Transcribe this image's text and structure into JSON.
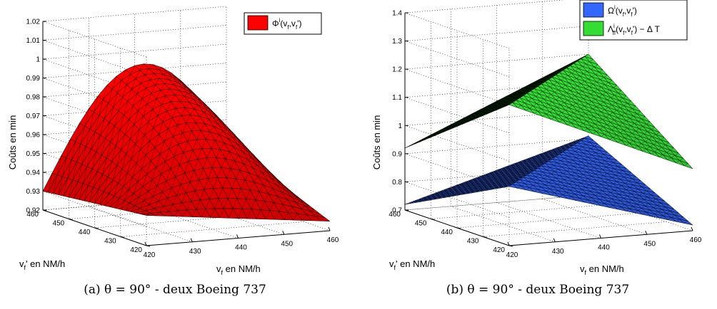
{
  "chart_data": [
    {
      "type": "surface",
      "caption": "(a) θ = 90° - deux Boeing 737",
      "zlabel": "Coûts en min",
      "xlabel_main": "v",
      "xlabel_sub": "f",
      "xlabel_rest": " en NM/h",
      "ylabel_main": "v",
      "ylabel_sub": "f",
      "ylabel_rest": "' en NM/h",
      "x_ticks": [
        "420",
        "430",
        "440",
        "450",
        "460"
      ],
      "y_ticks": [
        "420",
        "430",
        "440",
        "450",
        "460"
      ],
      "z_ticks": [
        "0.92",
        "0.93",
        "0.94",
        "0.95",
        "0.96",
        "0.97",
        "0.98",
        "0.99",
        "1",
        "1.01",
        "1.02"
      ],
      "xlim": [
        420,
        460
      ],
      "ylim": [
        420,
        460
      ],
      "zlim": [
        0.92,
        1.02
      ],
      "corners": {
        "x420_y420": 0.936,
        "x460_y420": 0.925,
        "x420_y460": 0.93,
        "x460_y460": 0.94,
        "peak": 0.99
      },
      "series": [
        {
          "name": "Φi(vf,vf')",
          "legend_main": "Φ",
          "legend_sup": "i",
          "legend_args": "(v",
          "legend_sub1": "f",
          "legend_mid": ",v",
          "legend_sub2": "f",
          "legend_end": "')",
          "color": "#ff0000"
        }
      ]
    },
    {
      "type": "surface",
      "caption": "(b) θ = 90° - deux Boeing 737",
      "zlabel": "Coûts en min",
      "xlabel_main": "v",
      "xlabel_sub": "f",
      "xlabel_rest": " en NM/h",
      "ylabel_main": "v",
      "ylabel_sub": "f",
      "ylabel_rest": "' en NM/h",
      "x_ticks": [
        "420",
        "430",
        "440",
        "450",
        "460"
      ],
      "y_ticks": [
        "420",
        "430",
        "440",
        "450",
        "460"
      ],
      "z_ticks": [
        "0.7",
        "0.8",
        "0.9",
        "1",
        "1.1",
        "1.2",
        "1.3",
        "1.4"
      ],
      "xlim": [
        420,
        460
      ],
      "ylim": [
        420,
        460
      ],
      "zlim": [
        0.7,
        1.4
      ],
      "series": [
        {
          "name": "Ωi(vf,vf')",
          "legend_main": "Ω",
          "legend_sup": "i",
          "legend_args": "(v",
          "legend_sub1": "f",
          "legend_mid": ",v",
          "legend_sub2": "f",
          "legend_end": "')",
          "color": "#3366ff",
          "ridge_value": 0.91
        },
        {
          "name": "Λffi(vf,vf') − Δ T",
          "legend_main": "Λ",
          "legend_sup": "i",
          "legend_subff": "ff",
          "legend_args": "(v",
          "legend_sub1": "f",
          "legend_mid": ",v",
          "legend_sub2": "f",
          "legend_end": "') − Δ T",
          "color": "#33dd33",
          "ridge_value": 1.2
        }
      ]
    }
  ]
}
